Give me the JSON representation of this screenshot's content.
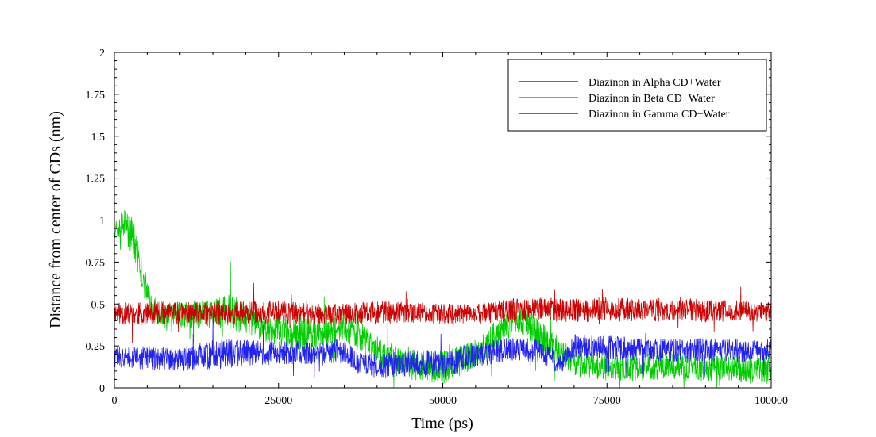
{
  "chart_data": {
    "type": "line",
    "title": "",
    "xlabel": "Time (ps)",
    "ylabel": "Distance from center of CDs (nm)",
    "xlim": [
      0,
      100000
    ],
    "ylim": [
      0,
      2
    ],
    "grid": false,
    "legend_position": "top-right",
    "x_ticks": [
      0,
      25000,
      50000,
      75000,
      100000
    ],
    "x_tick_labels": [
      "0",
      "25000",
      "50000",
      "75000",
      "100000"
    ],
    "y_ticks": [
      0,
      0.25,
      0.5,
      0.75,
      1,
      1.25,
      1.5,
      1.75,
      2
    ],
    "y_tick_labels": [
      "0",
      "0.25",
      "0.5",
      "0.75",
      "1",
      "1.25",
      "1.5",
      "1.75",
      "2"
    ],
    "series": [
      {
        "name": "Diazinon in Alpha CD+Water",
        "color": "#cc0000",
        "x": [
          0,
          2000,
          5000,
          10000,
          15000,
          20000,
          25000,
          30000,
          35000,
          40000,
          45000,
          50000,
          55000,
          60000,
          65000,
          70000,
          75000,
          80000,
          85000,
          90000,
          95000,
          100000
        ],
        "values": [
          0.45,
          0.44,
          0.44,
          0.45,
          0.44,
          0.45,
          0.45,
          0.44,
          0.44,
          0.45,
          0.45,
          0.44,
          0.44,
          0.46,
          0.47,
          0.46,
          0.47,
          0.46,
          0.47,
          0.46,
          0.46,
          0.45
        ],
        "spread": [
          0.06,
          0.07,
          0.07,
          0.06,
          0.07,
          0.07,
          0.07,
          0.06,
          0.06,
          0.07,
          0.06,
          0.06,
          0.06,
          0.07,
          0.07,
          0.07,
          0.07,
          0.07,
          0.07,
          0.07,
          0.06,
          0.06
        ]
      },
      {
        "name": "Diazinon in Beta CD+Water",
        "color": "#00cc00",
        "x": [
          0,
          1000,
          2000,
          3000,
          4000,
          5000,
          6000,
          8000,
          10000,
          15000,
          17500,
          20000,
          25000,
          30000,
          35000,
          40000,
          45000,
          50000,
          55000,
          60000,
          62000,
          65000,
          70000,
          75000,
          80000,
          85000,
          90000,
          95000,
          100000
        ],
        "values": [
          0.95,
          0.98,
          0.95,
          0.88,
          0.7,
          0.56,
          0.47,
          0.42,
          0.44,
          0.44,
          0.47,
          0.4,
          0.34,
          0.32,
          0.37,
          0.22,
          0.14,
          0.12,
          0.2,
          0.38,
          0.42,
          0.3,
          0.15,
          0.12,
          0.12,
          0.13,
          0.12,
          0.11,
          0.1
        ],
        "spread": [
          0.06,
          0.08,
          0.12,
          0.1,
          0.1,
          0.09,
          0.08,
          0.08,
          0.08,
          0.09,
          0.12,
          0.09,
          0.1,
          0.1,
          0.09,
          0.09,
          0.09,
          0.1,
          0.09,
          0.1,
          0.1,
          0.09,
          0.08,
          0.08,
          0.08,
          0.08,
          0.08,
          0.08,
          0.08
        ]
      },
      {
        "name": "Diazinon in Gamma CD+Water",
        "color": "#2222ee",
        "x": [
          0,
          5000,
          10000,
          15000,
          20000,
          25000,
          30000,
          35000,
          37000,
          40000,
          45000,
          50000,
          55000,
          60000,
          65000,
          68000,
          70000,
          75000,
          80000,
          85000,
          90000,
          95000,
          100000
        ],
        "values": [
          0.18,
          0.18,
          0.17,
          0.2,
          0.21,
          0.21,
          0.21,
          0.22,
          0.15,
          0.13,
          0.15,
          0.14,
          0.2,
          0.23,
          0.22,
          0.13,
          0.25,
          0.24,
          0.23,
          0.22,
          0.23,
          0.22,
          0.22
        ],
        "spread": [
          0.06,
          0.07,
          0.07,
          0.09,
          0.08,
          0.07,
          0.07,
          0.07,
          0.06,
          0.07,
          0.08,
          0.08,
          0.08,
          0.07,
          0.07,
          0.06,
          0.07,
          0.07,
          0.07,
          0.07,
          0.07,
          0.07,
          0.07
        ]
      }
    ]
  }
}
